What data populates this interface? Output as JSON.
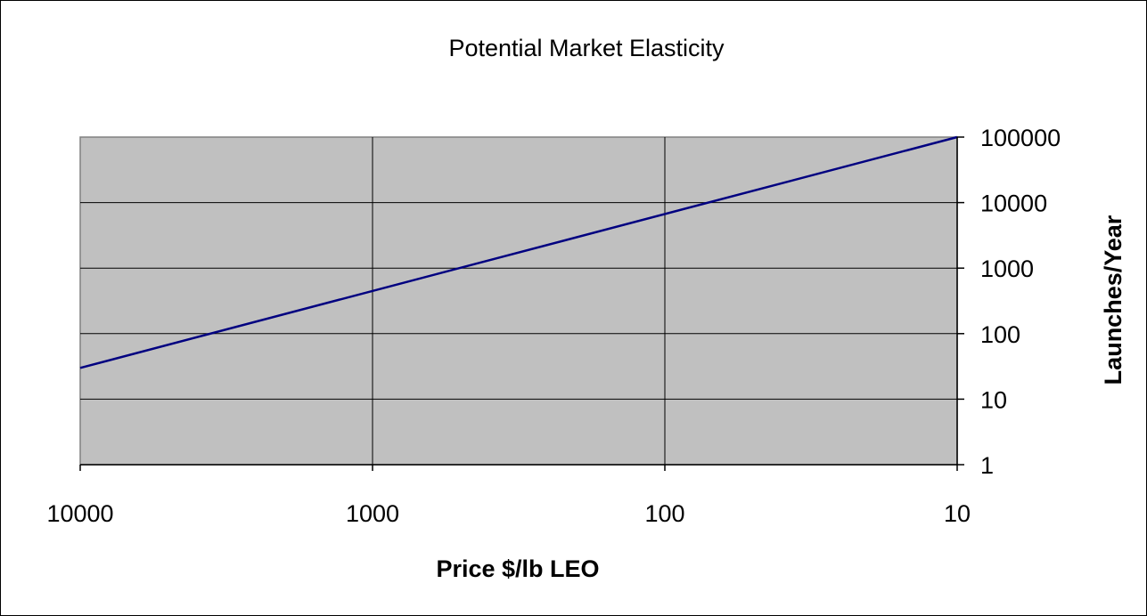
{
  "chart_data": {
    "type": "line",
    "title": "Potential Market Elasticity",
    "xlabel": "Price $/lb LEO",
    "ylabel": "Launches/Year",
    "x_scale": "log",
    "y_scale": "log",
    "x_reversed": true,
    "xlim": [
      10000,
      10
    ],
    "ylim": [
      1,
      100000
    ],
    "x_ticks": [
      10000,
      1000,
      100,
      10
    ],
    "x_tick_labels": [
      "10000",
      "1000",
      "100",
      "10"
    ],
    "y_ticks": [
      1,
      10,
      100,
      1000,
      10000,
      100000
    ],
    "y_tick_labels": [
      "1",
      "10",
      "100",
      "1000",
      "10000",
      "100000"
    ],
    "y_axis_side": "right",
    "grid": true,
    "legend": "none",
    "series": [
      {
        "x": [
          10000,
          10
        ],
        "y": [
          30,
          100000
        ],
        "color": "#000080"
      }
    ],
    "plot_background": "#c0c0c0"
  }
}
